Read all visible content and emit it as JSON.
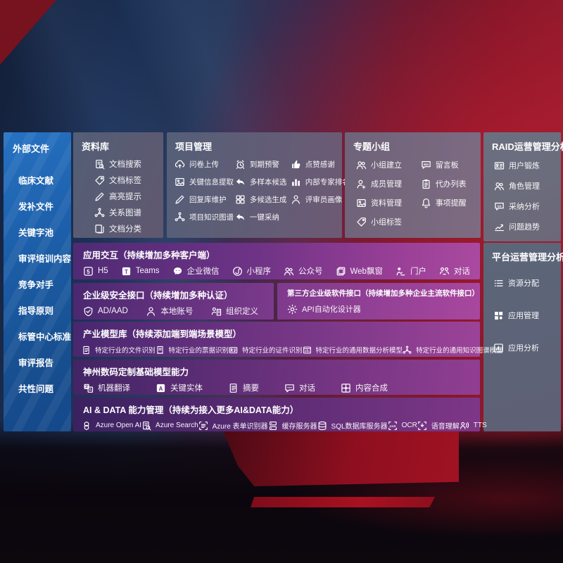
{
  "colors": {
    "sidebar_blue": "#1d60ab",
    "panel_slate": "#5c6377",
    "panel_mauve": "#74677e",
    "purple_dark": "#45256b",
    "purple_bright": "#a8479e",
    "background_navy": "#1c3055",
    "background_red": "#8e1628"
  },
  "left_panel": {
    "title": "外部文件",
    "items": [
      "临床文献",
      "发补文件",
      "关键字池",
      "审评培训内容",
      "竞争对手",
      "指导原则",
      "标管中心标准",
      "审评报告",
      "共性问题"
    ]
  },
  "boxes": {
    "library": {
      "title": "资料库",
      "items": [
        {
          "label": "文档搜索",
          "icon": "doc-search-icon"
        },
        {
          "label": "文档标签",
          "icon": "tag-icon"
        },
        {
          "label": "高亮提示",
          "icon": "highlight-icon"
        },
        {
          "label": "关系图谱",
          "icon": "graph-icon"
        },
        {
          "label": "文档分类",
          "icon": "docs-copy-icon"
        }
      ]
    },
    "project": {
      "title": "项目管理",
      "columns": [
        [
          {
            "label": "问卷上传",
            "icon": "cloud-upload-icon"
          },
          {
            "label": "关键信息提取",
            "icon": "extract-icon"
          },
          {
            "label": "回复库维护",
            "icon": "pencil-icon"
          },
          {
            "label": "项目知识图谱",
            "icon": "graph-icon"
          }
        ],
        [
          {
            "label": "到期预警",
            "icon": "alarm-icon"
          },
          {
            "label": "多样本候选",
            "icon": "reply-icon"
          },
          {
            "label": "多候选生成",
            "icon": "grid-icon"
          },
          {
            "label": "一键采纳",
            "icon": "adopt-arrow-icon"
          }
        ],
        [
          {
            "label": "点赞感谢",
            "icon": "thumbs-up-icon"
          },
          {
            "label": "内部专家排名",
            "icon": "ranking-icon"
          },
          {
            "label": "评审员画像",
            "icon": "person-icon"
          }
        ]
      ]
    },
    "groups": {
      "title": "专题小组",
      "columns": [
        [
          {
            "label": "小组建立",
            "icon": "people-icon"
          },
          {
            "label": "成员管理",
            "icon": "person-add-icon"
          },
          {
            "label": "资料管理",
            "icon": "album-icon"
          },
          {
            "label": "小组标签",
            "icon": "tag-icon"
          }
        ],
        [
          {
            "label": "留言板",
            "icon": "bbs-icon"
          },
          {
            "label": "代办列表",
            "icon": "clipboard-icon"
          },
          {
            "label": "事项提醒",
            "icon": "bell-icon"
          }
        ]
      ]
    },
    "raid": {
      "title": "RAID运营管理分析",
      "items": [
        {
          "label": "用户锻炼",
          "icon": "id-card-icon"
        },
        {
          "label": "角色管理",
          "icon": "people-icon"
        },
        {
          "label": "采纳分析",
          "icon": "chat-qa-icon"
        },
        {
          "label": "问题趋势",
          "icon": "trend-icon"
        }
      ]
    },
    "platform": {
      "title": "平台运营管理分析",
      "items": [
        {
          "label": "资源分配",
          "icon": "allocation-icon"
        },
        {
          "label": "应用管理",
          "icon": "apps-icon"
        },
        {
          "label": "应用分析",
          "icon": "app-chart-icon"
        }
      ]
    }
  },
  "rows": {
    "interaction": {
      "title": "应用交互（持续增加多种客户端）",
      "items": [
        {
          "label": "H5",
          "icon": "h5-icon"
        },
        {
          "label": "Teams",
          "icon": "teams-icon"
        },
        {
          "label": "企业微信",
          "icon": "wechat-work-icon"
        },
        {
          "label": "小程序",
          "icon": "miniprogram-icon"
        },
        {
          "label": "公众号",
          "icon": "official-account-icon"
        },
        {
          "label": "Web飘窗",
          "icon": "web-window-icon"
        },
        {
          "label": "门户",
          "icon": "portal-icon"
        },
        {
          "label": "对话",
          "icon": "dialog-icon"
        }
      ]
    },
    "security": {
      "title": "企业级安全接口（持续增加多种认证）",
      "items": [
        {
          "label": "AD/AAD",
          "icon": "shield-icon"
        },
        {
          "label": "本地账号",
          "icon": "local-account-icon"
        },
        {
          "label": "组织定义",
          "icon": "org-icon"
        }
      ]
    },
    "thirdparty": {
      "title": "第三方企业级软件接口（持续增加多种企业主流软件接口）",
      "items": [
        {
          "label": "API自动化设计器",
          "icon": "api-gear-icon"
        }
      ]
    },
    "industry": {
      "title": "产业模型库（持续添加端到端场景模型）",
      "items": [
        {
          "label": "特定行业的文件识别",
          "icon": "file-doc-icon"
        },
        {
          "label": "特定行业的票据识别",
          "icon": "receipt-icon"
        },
        {
          "label": "特定行业的证件识别",
          "icon": "id-card-icon"
        },
        {
          "label": "特定行业的通用数据分析模型",
          "icon": "data-model-icon"
        },
        {
          "label": "特定行业的通用知识图谱模型",
          "icon": "graph-icon"
        }
      ]
    },
    "base_model": {
      "title": "神州数码定制基础模型能力",
      "items": [
        {
          "label": "机器翻译",
          "icon": "translate-icon"
        },
        {
          "label": "关键实体",
          "icon": "entity-icon"
        },
        {
          "label": "摘要",
          "icon": "summary-icon"
        },
        {
          "label": "对话",
          "icon": "chat-icon"
        },
        {
          "label": "内容合成",
          "icon": "compose-icon"
        }
      ]
    },
    "aidata": {
      "title": "AI & DATA 能力管理（持续为接入更多AI&DATA能力）",
      "items": [
        {
          "label": "Azure Open AI",
          "icon": "openai-icon"
        },
        {
          "label": "Azure Search",
          "icon": "azure-search-icon"
        },
        {
          "label": "Azure 表单识别器",
          "icon": "form-recognizer-icon"
        },
        {
          "label": "缓存服务器",
          "icon": "cache-server-icon"
        },
        {
          "label": "SQL数据库服务器",
          "icon": "sql-db-icon"
        },
        {
          "label": "OCR",
          "icon": "ocr-icon"
        },
        {
          "label": "语音理解",
          "icon": "speech-icon"
        },
        {
          "label": "TTS",
          "icon": "tts-icon"
        }
      ]
    }
  }
}
